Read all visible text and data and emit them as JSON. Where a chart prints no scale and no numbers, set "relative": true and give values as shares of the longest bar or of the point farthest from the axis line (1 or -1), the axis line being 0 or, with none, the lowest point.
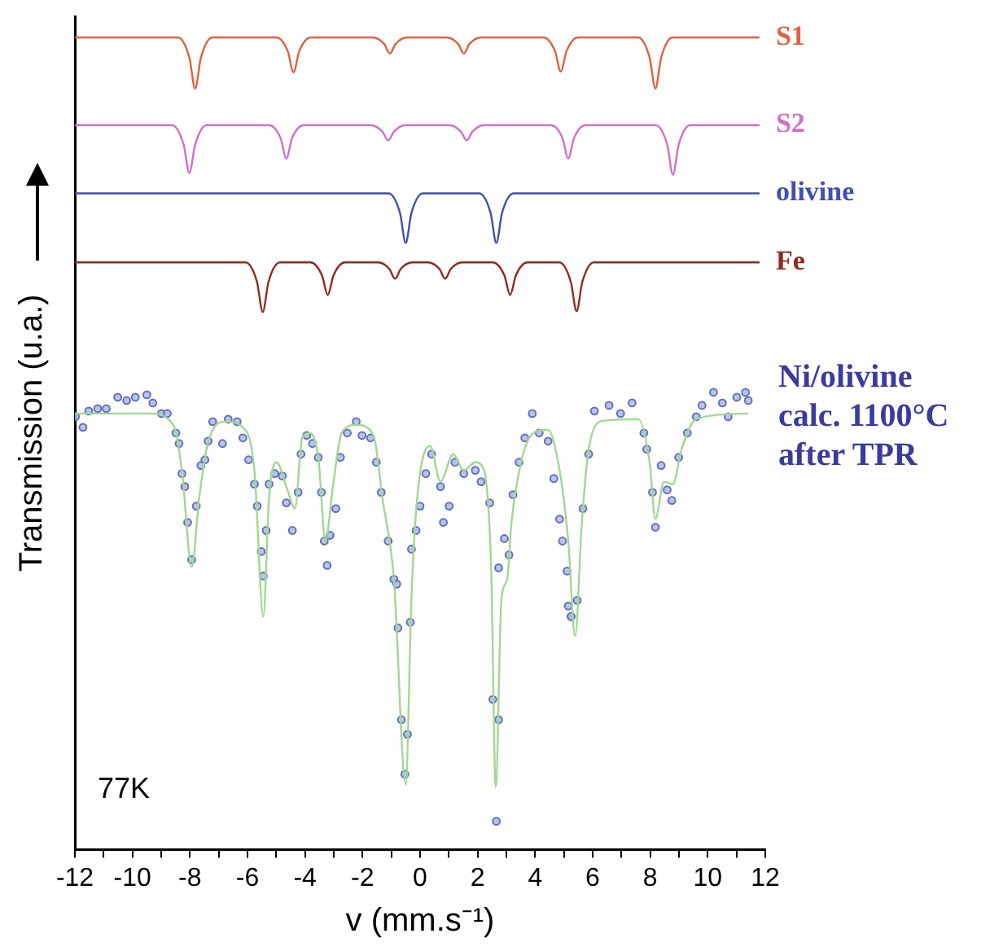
{
  "chart_data": {
    "type": "line",
    "xlabel": "v (mm.s⁻¹)",
    "ylabel": "Transmission (u.a.)",
    "relative": true,
    "tick_labels": "x",
    "grid": false,
    "legend": false,
    "marker": "none",
    "line_style": "solid",
    "xlim": [
      -12,
      12
    ],
    "xticks": [
      -12,
      {
        "value": -11,
        "label": null
      },
      -10,
      {
        "value": -9,
        "label": null
      },
      -8,
      {
        "value": -7,
        "label": null
      },
      -6,
      {
        "value": -5,
        "label": null
      },
      -4,
      {
        "value": -3,
        "label": null
      },
      -2,
      {
        "value": -1,
        "label": null
      },
      0,
      {
        "value": 1,
        "label": null
      },
      2,
      {
        "value": 3,
        "label": null
      },
      4,
      {
        "value": 5,
        "label": null
      },
      6,
      {
        "value": 7,
        "label": null
      },
      8,
      {
        "value": 9,
        "label": null
      },
      10,
      {
        "value": 11,
        "label": null
      },
      12
    ],
    "annotations": [
      "Ni/olivine calc. 1100°C after TPR",
      "77K"
    ],
    "series": [
      {
        "name": "S1",
        "color": "#e06040",
        "x": [
          -12,
          -8.42,
          -8.02,
          -7.82,
          -7.62,
          -7.22,
          -5.0,
          -4.6,
          -4.4,
          -4.2,
          -3.8,
          -1.65,
          -1.25,
          -1.05,
          -0.85,
          -0.45,
          0.92,
          1.32,
          1.52,
          1.72,
          2.12,
          4.29,
          4.69,
          4.89,
          5.09,
          5.49,
          7.58,
          7.98,
          8.18,
          8.38,
          8.78,
          11.8
        ],
        "values": [
          1,
          1,
          0.975,
          0.937,
          0.975,
          1,
          1,
          0.983,
          0.957,
          0.983,
          1,
          1,
          0.992,
          0.98,
          0.992,
          1,
          1,
          0.992,
          0.98,
          0.992,
          1,
          1,
          0.983,
          0.958,
          0.983,
          1,
          1,
          0.975,
          0.937,
          0.975,
          1,
          1
        ]
      },
      {
        "name": "S2",
        "color": "#d070c8",
        "x": [
          -12,
          -8.62,
          -8.22,
          -8.02,
          -7.82,
          -7.42,
          -5.25,
          -4.85,
          -4.65,
          -4.45,
          -4.05,
          -1.71,
          -1.31,
          -1.11,
          -0.91,
          -0.51,
          1.02,
          1.42,
          1.62,
          1.82,
          2.22,
          4.55,
          4.95,
          5.15,
          5.35,
          5.75,
          8.19,
          8.59,
          8.79,
          8.99,
          9.39,
          11.8
        ],
        "values": [
          0.892,
          0.892,
          0.868,
          0.833,
          0.868,
          0.892,
          0.892,
          0.876,
          0.851,
          0.876,
          0.892,
          0.892,
          0.884,
          0.873,
          0.884,
          0.892,
          0.892,
          0.884,
          0.873,
          0.884,
          0.892,
          0.892,
          0.876,
          0.851,
          0.876,
          0.892,
          0.892,
          0.868,
          0.831,
          0.868,
          0.892,
          0.892
        ]
      },
      {
        "name": "olivine",
        "color": "#4050b0",
        "x": [
          -12,
          -1.1,
          -0.7,
          -0.5,
          -0.3,
          0.1,
          2.05,
          2.45,
          2.65,
          2.85,
          3.25,
          11.8
        ],
        "values": [
          0.808,
          0.808,
          0.784,
          0.747,
          0.784,
          0.808,
          0.808,
          0.784,
          0.747,
          0.784,
          0.808,
          0.808
        ]
      },
      {
        "name": "Fe",
        "color": "#902a20",
        "x": [
          -12,
          -6.07,
          -5.67,
          -5.47,
          -5.27,
          -4.87,
          -3.81,
          -3.41,
          -3.21,
          -3.01,
          -2.61,
          -1.47,
          -1.07,
          -0.87,
          -0.67,
          -0.27,
          0.27,
          0.67,
          0.87,
          1.07,
          1.47,
          2.53,
          2.93,
          3.13,
          3.33,
          3.73,
          4.84,
          5.24,
          5.44,
          5.64,
          6.04,
          11.8
        ],
        "values": [
          0.723,
          0.723,
          0.699,
          0.662,
          0.699,
          0.723,
          0.723,
          0.707,
          0.683,
          0.707,
          0.723,
          0.723,
          0.715,
          0.703,
          0.715,
          0.723,
          0.723,
          0.715,
          0.703,
          0.715,
          0.723,
          0.723,
          0.707,
          0.683,
          0.707,
          0.723,
          0.723,
          0.699,
          0.663,
          0.699,
          0.723,
          0.723
        ]
      },
      {
        "color": "#a0d890",
        "x": [
          -12.0,
          -9.39,
          -8.58,
          -8.28,
          -7.94,
          -7.68,
          -7.38,
          -6.77,
          -6.16,
          -5.76,
          -5.45,
          -5.25,
          -4.99,
          -4.65,
          -4.35,
          -4.1,
          -3.84,
          -3.53,
          -3.29,
          -3.03,
          -2.73,
          -2.22,
          -1.62,
          -1.31,
          -0.91,
          -0.5,
          -0.3,
          -0.1,
          0.35,
          0.71,
          1.15,
          1.52,
          1.92,
          2.22,
          2.47,
          2.63,
          2.83,
          3.03,
          3.17,
          3.53,
          3.94,
          4.44,
          4.85,
          5.15,
          5.39,
          5.62,
          5.86,
          6.36,
          7.58,
          7.98,
          8.18,
          8.48,
          8.79,
          9.09,
          9.59,
          11.41
        ],
        "values": [
          0.537,
          0.537,
          0.523,
          0.467,
          0.348,
          0.433,
          0.5,
          0.527,
          0.52,
          0.467,
          0.287,
          0.433,
          0.477,
          0.447,
          0.42,
          0.507,
          0.513,
          0.48,
          0.38,
          0.447,
          0.513,
          0.523,
          0.51,
          0.433,
          0.333,
          0.08,
          0.31,
          0.433,
          0.497,
          0.453,
          0.487,
          0.467,
          0.477,
          0.467,
          0.347,
          0.077,
          0.31,
          0.333,
          0.4,
          0.48,
          0.513,
          0.517,
          0.467,
          0.38,
          0.263,
          0.4,
          0.493,
          0.528,
          0.53,
          0.477,
          0.407,
          0.453,
          0.45,
          0.493,
          0.53,
          0.537
        ]
      },
      {
        "type": "scatter",
        "color": "#6070c0",
        "marker": "circle",
        "x": [
          -11.98,
          -11.72,
          -11.52,
          -11.21,
          -10.91,
          -10.51,
          -10.2,
          -9.9,
          -9.5,
          -9.29,
          -8.99,
          -8.79,
          -8.49,
          -8.38,
          -8.28,
          -8.18,
          -8.08,
          -7.94,
          -7.78,
          -7.62,
          -7.48,
          -7.37,
          -7.21,
          -6.87,
          -6.67,
          -6.36,
          -6.16,
          -5.96,
          -5.76,
          -5.66,
          -5.52,
          -5.45,
          -5.35,
          -5.25,
          -5.05,
          -4.79,
          -4.65,
          -4.44,
          -4.24,
          -4.14,
          -3.94,
          -3.74,
          -3.54,
          -3.43,
          -3.33,
          -3.23,
          -3.13,
          -2.93,
          -2.77,
          -2.53,
          -2.22,
          -2.02,
          -1.72,
          -1.52,
          -1.35,
          -1.11,
          -0.91,
          -0.81,
          -0.3,
          -0.14,
          0.0,
          0.2,
          0.4,
          0.71,
          0.81,
          1.01,
          1.21,
          1.52,
          1.92,
          2.12,
          2.42,
          2.73,
          2.93,
          3.09,
          3.23,
          3.44,
          3.64,
          3.9,
          4.14,
          4.45,
          4.65,
          4.85,
          4.95,
          5.11,
          5.25,
          5.46,
          5.66,
          5.86,
          6.06,
          6.57,
          6.97,
          7.37,
          7.78,
          7.88,
          8.08,
          8.18,
          8.38,
          8.59,
          8.75,
          8.99,
          9.29,
          9.6,
          9.8,
          10.2,
          10.51,
          10.71,
          11.01,
          11.31,
          11.41,
          -0.77,
          -0.34,
          -0.65,
          -0.44,
          -0.53,
          2.53,
          2.73,
          2.65,
          5.15,
          5.25
        ],
        "values": [
          0.533,
          0.52,
          0.54,
          0.543,
          0.543,
          0.557,
          0.553,
          0.557,
          0.56,
          0.55,
          0.537,
          0.537,
          0.513,
          0.5,
          0.463,
          0.447,
          0.403,
          0.357,
          0.423,
          0.473,
          0.48,
          0.503,
          0.527,
          0.5,
          0.53,
          0.527,
          0.507,
          0.48,
          0.45,
          0.423,
          0.367,
          0.337,
          0.393,
          0.45,
          0.463,
          0.46,
          0.427,
          0.393,
          0.44,
          0.487,
          0.51,
          0.5,
          0.483,
          0.44,
          0.38,
          0.35,
          0.387,
          0.42,
          0.483,
          0.513,
          0.527,
          0.51,
          0.507,
          0.477,
          0.44,
          0.38,
          0.333,
          0.327,
          0.37,
          0.393,
          0.423,
          0.463,
          0.487,
          0.447,
          0.403,
          0.423,
          0.477,
          0.463,
          0.467,
          0.453,
          0.427,
          0.347,
          0.383,
          0.363,
          0.437,
          0.477,
          0.507,
          0.537,
          0.513,
          0.503,
          0.457,
          0.407,
          0.38,
          0.343,
          0.287,
          0.307,
          0.42,
          0.487,
          0.54,
          0.547,
          0.537,
          0.55,
          0.513,
          0.493,
          0.44,
          0.397,
          0.473,
          0.443,
          0.43,
          0.483,
          0.513,
          0.533,
          0.547,
          0.563,
          0.55,
          0.533,
          0.557,
          0.563,
          0.553,
          0.273,
          0.28,
          0.16,
          0.142,
          0.093,
          0.185,
          0.16,
          0.035,
          0.3,
          0.287
        ]
      }
    ]
  }
}
